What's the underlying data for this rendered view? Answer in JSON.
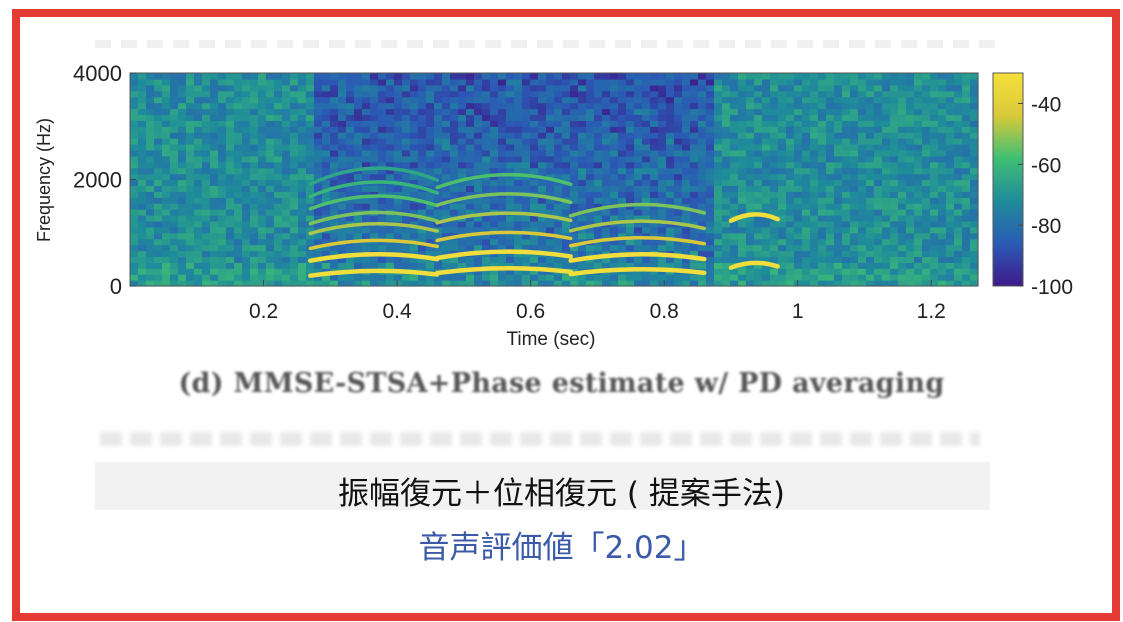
{
  "chart_data": {
    "type": "heatmap",
    "title": "",
    "xlabel": "Time (sec)",
    "ylabel": "Frequency (Hz)",
    "xlim": [
      0,
      1.27
    ],
    "ylim": [
      0,
      4000
    ],
    "x_ticks": [
      "0.2",
      "0.4",
      "0.6",
      "0.8",
      "1",
      "1.2"
    ],
    "y_ticks": [
      "0",
      "2000",
      "4000"
    ],
    "colorbar": {
      "ticks": [
        "-40",
        "-60",
        "-80",
        "-100"
      ],
      "range": [
        -100,
        -30
      ],
      "colors": [
        "#3e1a8a",
        "#2a5bb5",
        "#1f8c9a",
        "#3fbf72",
        "#d9c93a",
        "#f5e13b"
      ]
    },
    "harmonic_segments": [
      {
        "t_start": 0.27,
        "t_end": 0.46,
        "freqs_hz": [
          250,
          550,
          800,
          1100,
          1300,
          1600,
          1850,
          2100
        ]
      },
      {
        "t_start": 0.46,
        "t_end": 0.66,
        "freqs_hz": [
          300,
          600,
          950,
          1300,
          1650,
          2000
        ]
      },
      {
        "t_start": 0.66,
        "t_end": 0.86,
        "freqs_hz": [
          280,
          550,
          850,
          1150,
          1450
        ]
      },
      {
        "t_start": 0.9,
        "t_end": 0.97,
        "freqs_hz": [
          400,
          1300
        ]
      }
    ]
  },
  "caption_en": "(d) MMSE-STSA+Phase estimate w/ PD averaging",
  "caption_jp": "振幅復元＋位相復元 ( 提案手法)",
  "score_text": "音声評価値「2.02」"
}
